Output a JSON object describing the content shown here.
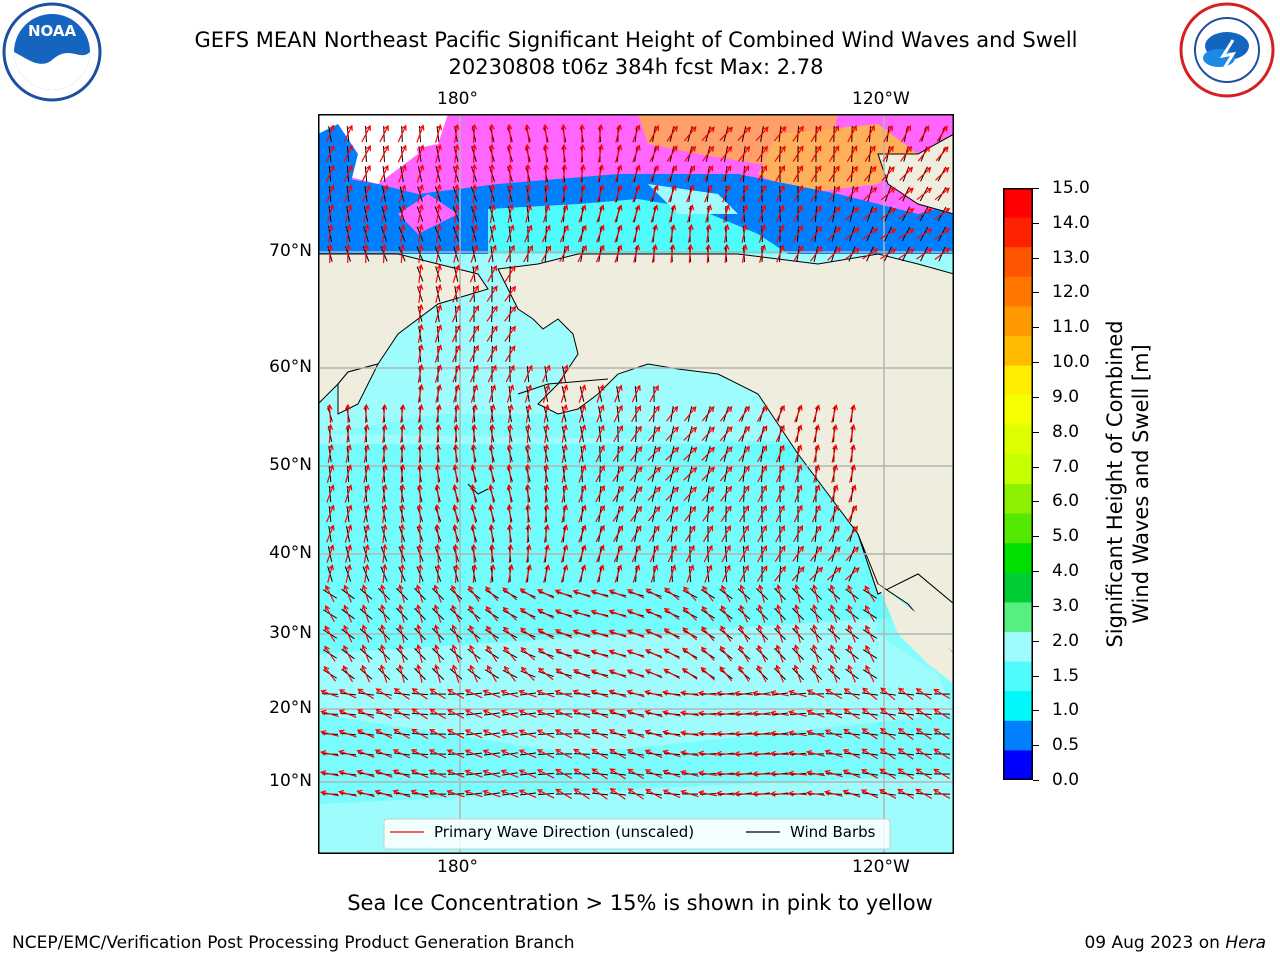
{
  "header": {
    "title_line1": "GEFS MEAN Northeast Pacific Significant Height of Combined Wind Waves and Swell",
    "title_line2": "20230808 t06z 384h fcst   Max: 2.78"
  },
  "logos": {
    "noaa": {
      "text": "NOAA",
      "ring_text": "NATIONAL OCEANIC AND ATMOSPHERIC ADMINISTRATION · U.S. DEPARTMENT OF COMMERCE"
    },
    "nws": {
      "ring_text": "NATIONAL WEATHER SERVICE"
    }
  },
  "map": {
    "lon_labels": [
      "180°",
      "120°W"
    ],
    "lat_labels": [
      "70°N",
      "60°N",
      "50°N",
      "40°N",
      "30°N",
      "20°N",
      "10°N"
    ],
    "legend": {
      "wave_label": "Primary Wave Direction (unscaled)",
      "wind_label": "Wind Barbs",
      "wave_color": "#ff0000",
      "wind_color": "#000000"
    },
    "colors": {
      "land": "#efedde",
      "ocean_low": "#9ffcfc",
      "ocean_mid": "#4ffcfc",
      "grid": "#b3b3b3"
    }
  },
  "colorbar": {
    "label_line1": "Significant Height of Combined",
    "label_line2": "Wind Waves and Swell [m]",
    "ticks": [
      "15.0",
      "14.0",
      "13.0",
      "12.0",
      "11.0",
      "10.0",
      "9.0",
      "8.0",
      "7.0",
      "6.0",
      "5.0",
      "4.0",
      "3.0",
      "2.0",
      "1.5",
      "1.0",
      "0.5",
      "0.0"
    ],
    "colors": [
      "#ff0000",
      "#ff2200",
      "#ff5500",
      "#ff7700",
      "#ff9900",
      "#ffbb00",
      "#ffee00",
      "#f5ff00",
      "#ddff00",
      "#c6ff00",
      "#8cf000",
      "#55e800",
      "#00e000",
      "#00cc33",
      "#55f080",
      "#9ffcfc",
      "#4ffcfc",
      "#00f8f8",
      "#0080ff",
      "#0000ff"
    ]
  },
  "notes": {
    "sea_ice": "Sea Ice Concentration > 15% is shown in pink to yellow"
  },
  "footer": {
    "left": "NCEP/EMC/Verification Post Processing Product Generation Branch",
    "date": "09 Aug 2023 on ",
    "host": "Hera"
  }
}
